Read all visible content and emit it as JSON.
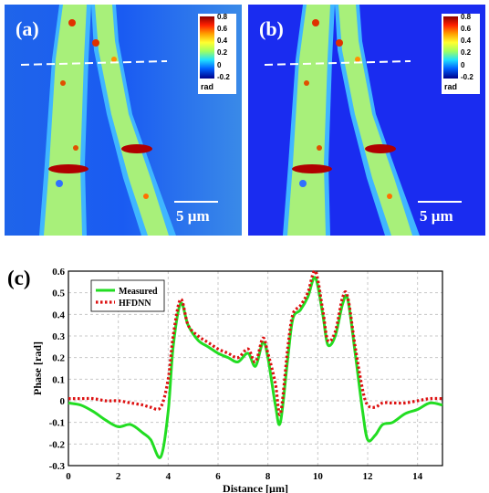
{
  "panels": [
    {
      "label": "(a)",
      "scale_label": "5 µm",
      "colorbar": {
        "ticks": [
          "0.8",
          "0.6",
          "0.4",
          "0.2",
          "0",
          "-0.2"
        ],
        "unit": "rad"
      }
    },
    {
      "label": "(b)",
      "scale_label": "5 µm",
      "colorbar": {
        "ticks": [
          "0.8",
          "0.6",
          "0.4",
          "0.2",
          "0",
          "-0.2"
        ],
        "unit": "rad"
      }
    }
  ],
  "chart_label": "(c)",
  "colors": {
    "measured": "#22dd22",
    "hfdnn": "#dd1111",
    "grid": "#c8c8c8"
  },
  "chart_data": {
    "type": "line",
    "xlabel": "Distance [µm]",
    "ylabel": "Phase [rad]",
    "xlim": [
      0,
      15
    ],
    "ylim": [
      -0.3,
      0.6
    ],
    "xticks": [
      "0",
      "2",
      "4",
      "6",
      "8",
      "10",
      "12",
      "14"
    ],
    "yticks": [
      "0.6",
      "0.5",
      "0.4",
      "0.3",
      "0.2",
      "0.1",
      "0",
      "-0.1",
      "-0.2",
      "-0.3"
    ],
    "grid": true,
    "legend": "top-left",
    "series": [
      {
        "name": "Measured",
        "style": "solid",
        "x": [
          0,
          0.5,
          1.0,
          1.5,
          2.0,
          2.5,
          3.0,
          3.3,
          3.7,
          4.0,
          4.2,
          4.5,
          4.8,
          5.2,
          5.6,
          6.0,
          6.4,
          6.8,
          7.2,
          7.5,
          7.8,
          8.0,
          8.3,
          8.5,
          8.8,
          9.0,
          9.3,
          9.6,
          9.9,
          10.2,
          10.4,
          10.7,
          11.0,
          11.2,
          11.5,
          11.8,
          12.0,
          12.3,
          12.6,
          13.0,
          13.5,
          14.0,
          14.5,
          15.0
        ],
        "y": [
          -0.01,
          -0.02,
          -0.05,
          -0.09,
          -0.12,
          -0.11,
          -0.15,
          -0.18,
          -0.26,
          -0.05,
          0.25,
          0.45,
          0.35,
          0.28,
          0.25,
          0.22,
          0.2,
          0.18,
          0.22,
          0.16,
          0.27,
          0.2,
          -0.02,
          -0.1,
          0.2,
          0.38,
          0.42,
          0.48,
          0.57,
          0.4,
          0.26,
          0.3,
          0.45,
          0.47,
          0.22,
          -0.05,
          -0.18,
          -0.16,
          -0.11,
          -0.1,
          -0.06,
          -0.04,
          -0.01,
          -0.02
        ]
      },
      {
        "name": "HFDNN",
        "style": "dotted",
        "x": [
          0,
          0.5,
          1.0,
          1.5,
          2.0,
          2.5,
          3.0,
          3.3,
          3.7,
          4.0,
          4.2,
          4.5,
          4.8,
          5.2,
          5.6,
          6.0,
          6.4,
          6.8,
          7.2,
          7.5,
          7.8,
          8.0,
          8.3,
          8.5,
          8.8,
          9.0,
          9.3,
          9.6,
          9.9,
          10.2,
          10.4,
          10.7,
          11.0,
          11.2,
          11.5,
          11.8,
          12.0,
          12.3,
          12.6,
          13.0,
          13.5,
          14.0,
          14.5,
          15.0
        ],
        "y": [
          0.01,
          0.01,
          0.01,
          0.0,
          0.0,
          -0.01,
          -0.02,
          -0.03,
          -0.03,
          0.1,
          0.3,
          0.47,
          0.35,
          0.3,
          0.27,
          0.24,
          0.22,
          0.2,
          0.24,
          0.18,
          0.29,
          0.22,
          0.08,
          -0.06,
          0.25,
          0.4,
          0.44,
          0.5,
          0.6,
          0.42,
          0.28,
          0.32,
          0.48,
          0.48,
          0.25,
          0.05,
          -0.02,
          -0.03,
          -0.01,
          -0.01,
          -0.01,
          0.0,
          0.01,
          0.01
        ]
      }
    ]
  }
}
